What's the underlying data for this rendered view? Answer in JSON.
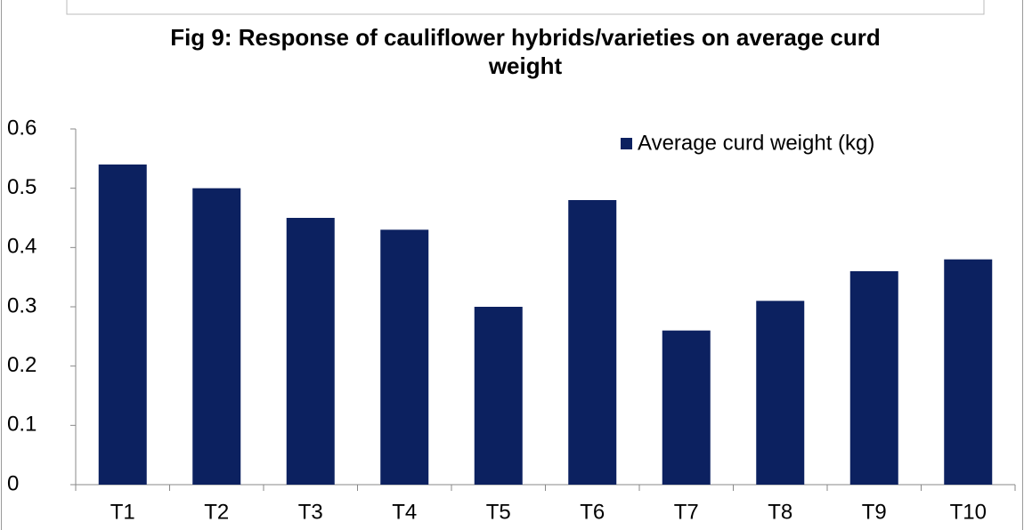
{
  "chart_data": {
    "type": "bar",
    "title": "Fig 9: Response of cauliflower hybrids/varieties on average curd weight",
    "categories": [
      "T1",
      "T2",
      "T3",
      "T4",
      "T5",
      "T6",
      "T7",
      "T8",
      "T9",
      "T10"
    ],
    "series": [
      {
        "name": "Average curd weight (kg)",
        "color": "#0c2160",
        "values": [
          0.54,
          0.5,
          0.45,
          0.43,
          0.3,
          0.48,
          0.26,
          0.31,
          0.36,
          0.38
        ]
      }
    ],
    "ylim": [
      0,
      0.6
    ],
    "yticks": [
      0,
      0.1,
      0.2,
      0.3,
      0.4,
      0.5,
      0.6
    ],
    "grid": false,
    "legend": "top-right"
  }
}
